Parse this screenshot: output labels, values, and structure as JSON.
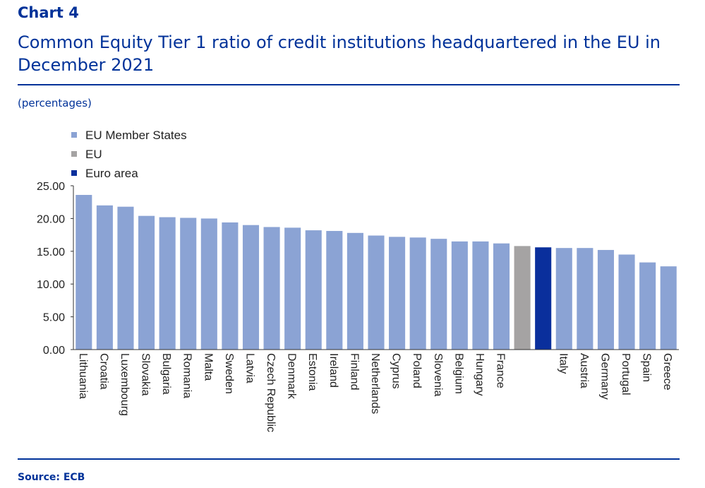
{
  "header": {
    "chart_label": "Chart 4",
    "title": "Common Equity Tier 1 ratio of credit institutions headquartered in the EU in December 2021",
    "units": "(percentages)"
  },
  "footer": {
    "source": "Source: ECB"
  },
  "colors": {
    "member_states": "#8ba3d4",
    "eu": "#a5a3a3",
    "euro_area": "#0a2f9c",
    "brand": "#003299"
  },
  "chart_data": {
    "type": "bar",
    "title": "",
    "xlabel": "",
    "ylabel": "",
    "ylim": [
      0,
      25
    ],
    "yticks": [
      "0.00",
      "5.00",
      "10.00",
      "15.00",
      "20.00",
      "25.00"
    ],
    "grid": false,
    "legend": [
      {
        "name": "EU Member States",
        "color": "#8ba3d4"
      },
      {
        "name": "EU",
        "color": "#a5a3a3"
      },
      {
        "name": "Euro area",
        "color": "#0a2f9c"
      }
    ],
    "legend_position": "top-left",
    "categories": [
      "Lithuania",
      "Croatia",
      "Luxembourg",
      "Slovakia",
      "Bulgaria",
      "Romania",
      "Malta",
      "Sweden",
      "Latvia",
      "Czech Republic",
      "Denmark",
      "Estonia",
      "Ireland",
      "Finland",
      "Netherlands",
      "Cyprus",
      "Poland",
      "Slovenia",
      "Belgium",
      "Hungary",
      "France",
      "",
      "",
      "Italy",
      "Austria",
      "Germany",
      "Portugal",
      "Spain",
      "Greece"
    ],
    "values": [
      23.6,
      22.0,
      21.8,
      20.4,
      20.2,
      20.1,
      20.0,
      19.4,
      19.0,
      18.7,
      18.6,
      18.2,
      18.1,
      17.8,
      17.4,
      17.2,
      17.1,
      16.9,
      16.5,
      16.5,
      16.2,
      15.8,
      15.6,
      15.5,
      15.5,
      15.2,
      14.5,
      13.3,
      12.7
    ],
    "groups": [
      "member",
      "member",
      "member",
      "member",
      "member",
      "member",
      "member",
      "member",
      "member",
      "member",
      "member",
      "member",
      "member",
      "member",
      "member",
      "member",
      "member",
      "member",
      "member",
      "member",
      "member",
      "eu",
      "euro",
      "member",
      "member",
      "member",
      "member",
      "member",
      "member"
    ]
  }
}
